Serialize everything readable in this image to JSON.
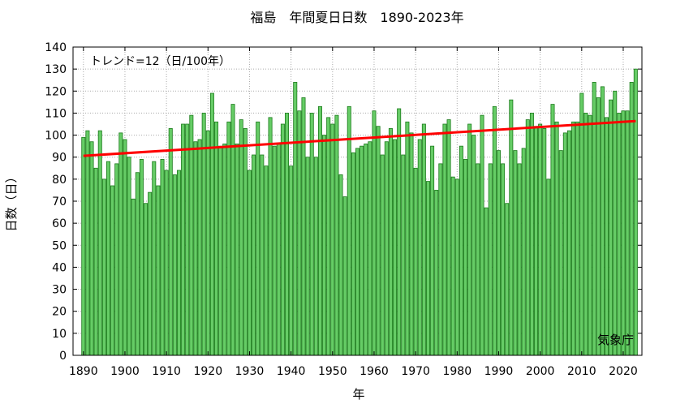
{
  "chart_data": {
    "type": "bar",
    "title": "福島　年間夏日日数　1890-2023年",
    "xlabel": "年",
    "ylabel": "日数（日）",
    "trend_label": "トレンド=12（日/100年）",
    "credit": "気象庁",
    "x_start": 1890,
    "x_end": 2023,
    "xlim": [
      1887.5,
      2024.5
    ],
    "ylim": [
      0,
      140
    ],
    "y_ticks": [
      0,
      10,
      20,
      30,
      40,
      50,
      60,
      70,
      80,
      90,
      100,
      110,
      120,
      130,
      140
    ],
    "x_ticks": [
      1890,
      1900,
      1910,
      1920,
      1930,
      1940,
      1950,
      1960,
      1970,
      1980,
      1990,
      2000,
      2010,
      2020
    ],
    "grid": true,
    "bar_color": "#66cc66",
    "bar_edge_color": "#1a7a1a",
    "trend_color": "#ff0000",
    "trend": {
      "x": [
        1890,
        2023
      ],
      "y": [
        90.6,
        106.4
      ]
    },
    "years": [
      1890,
      1891,
      1892,
      1893,
      1894,
      1895,
      1896,
      1897,
      1898,
      1899,
      1900,
      1901,
      1902,
      1903,
      1904,
      1905,
      1906,
      1907,
      1908,
      1909,
      1910,
      1911,
      1912,
      1913,
      1914,
      1915,
      1916,
      1917,
      1918,
      1919,
      1920,
      1921,
      1922,
      1923,
      1924,
      1925,
      1926,
      1927,
      1928,
      1929,
      1930,
      1931,
      1932,
      1933,
      1934,
      1935,
      1936,
      1937,
      1938,
      1939,
      1940,
      1941,
      1942,
      1943,
      1944,
      1945,
      1946,
      1947,
      1948,
      1949,
      1950,
      1951,
      1952,
      1953,
      1954,
      1955,
      1956,
      1957,
      1958,
      1959,
      1960,
      1961,
      1962,
      1963,
      1964,
      1965,
      1966,
      1967,
      1968,
      1969,
      1970,
      1971,
      1972,
      1973,
      1974,
      1975,
      1976,
      1977,
      1978,
      1979,
      1980,
      1981,
      1982,
      1983,
      1984,
      1985,
      1986,
      1987,
      1988,
      1989,
      1990,
      1991,
      1992,
      1993,
      1994,
      1995,
      1996,
      1997,
      1998,
      1999,
      2000,
      2001,
      2002,
      2003,
      2004,
      2005,
      2006,
      2007,
      2008,
      2009,
      2010,
      2011,
      2012,
      2013,
      2014,
      2015,
      2016,
      2017,
      2018,
      2019,
      2020,
      2021,
      2022,
      2023
    ],
    "values": [
      99,
      102,
      97,
      85,
      102,
      80,
      88,
      77,
      87,
      101,
      98,
      90,
      71,
      83,
      89,
      69,
      74,
      88,
      77,
      89,
      84,
      103,
      82,
      84,
      105,
      105,
      109,
      97,
      98,
      110,
      102,
      119,
      106,
      95,
      96,
      106,
      114,
      96,
      107,
      103,
      84,
      91,
      106,
      91,
      86,
      108,
      95,
      96,
      105,
      110,
      86,
      124,
      111,
      117,
      90,
      110,
      90,
      113,
      100,
      108,
      105,
      109,
      82,
      72,
      113,
      92,
      94,
      95,
      96,
      97,
      111,
      104,
      91,
      97,
      103,
      98,
      112,
      91,
      106,
      101,
      85,
      98,
      105,
      79,
      95,
      75,
      87,
      105,
      107,
      81,
      80,
      95,
      89,
      105,
      100,
      87,
      109,
      67,
      87,
      113,
      93,
      87,
      69,
      116,
      93,
      87,
      94,
      107,
      110,
      104,
      105,
      103,
      80,
      114,
      106,
      93,
      101,
      102,
      106,
      106,
      119,
      110,
      109,
      124,
      117,
      122,
      108,
      116,
      120,
      110,
      111,
      111,
      124,
      130
    ]
  }
}
